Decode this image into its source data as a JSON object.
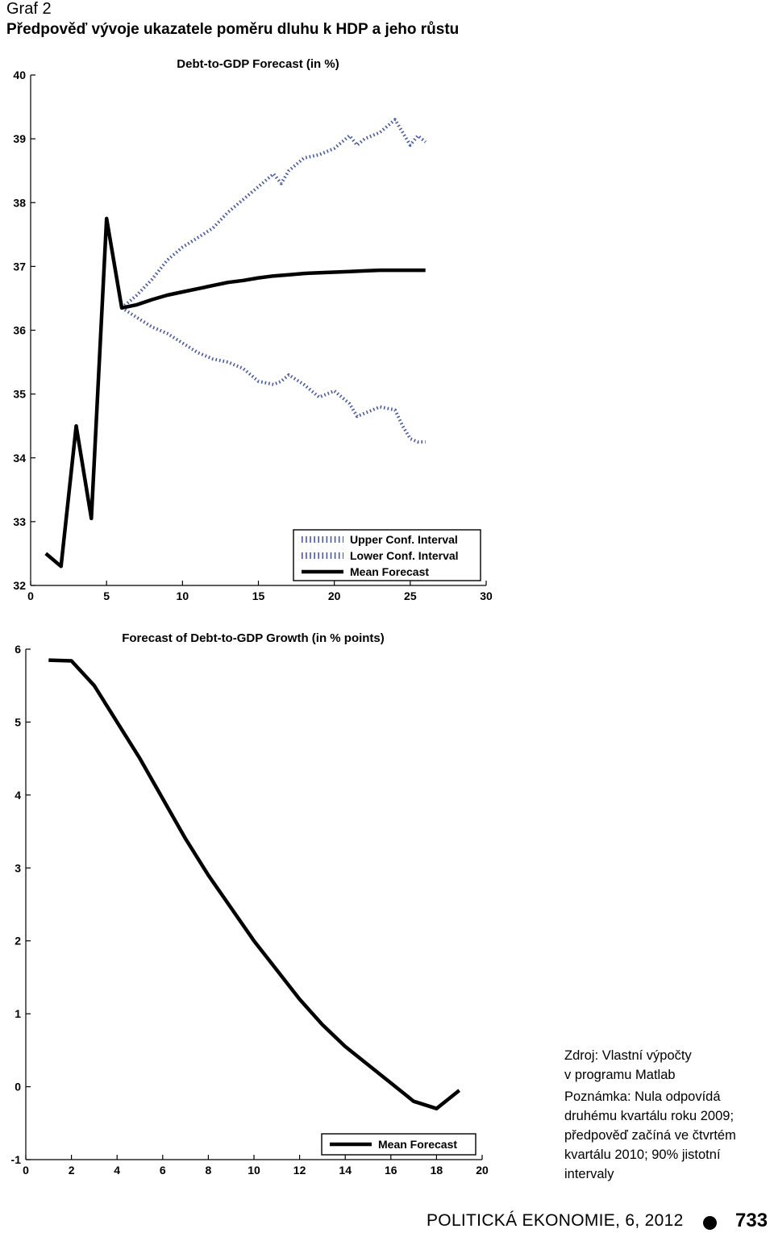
{
  "header": {
    "graf_label": "Graf 2",
    "title": "Předpověď vývoje ukazatele poměru dluhu k HDP a jeho růstu"
  },
  "chart_data": [
    {
      "type": "line",
      "title": "Debt-to-GDP Forecast (in %)",
      "xlabel": "",
      "ylabel": "",
      "xlim": [
        0,
        30
      ],
      "ylim": [
        32,
        40
      ],
      "x_ticks": [
        0,
        5,
        10,
        15,
        20,
        25,
        30
      ],
      "y_ticks": [
        32,
        33,
        34,
        35,
        36,
        37,
        38,
        39,
        40
      ],
      "grid": false,
      "legend_position": "bottom-right",
      "series": [
        {
          "name": "Upper Conf. Interval",
          "style": "dotted",
          "color": "#4a5a9a",
          "x": [
            6,
            7,
            8,
            9,
            10,
            11,
            12,
            13,
            14,
            15,
            16,
            16.5,
            17,
            18,
            19,
            20,
            21,
            21.5,
            22,
            23,
            24,
            24.5,
            25,
            25.5,
            26
          ],
          "y": [
            36.35,
            36.55,
            36.8,
            37.1,
            37.3,
            37.45,
            37.6,
            37.85,
            38.05,
            38.25,
            38.45,
            38.3,
            38.5,
            38.7,
            38.75,
            38.85,
            39.05,
            38.9,
            39.0,
            39.1,
            39.3,
            39.1,
            38.9,
            39.05,
            38.95
          ]
        },
        {
          "name": "Lower Conf. Interval",
          "style": "dotted",
          "color": "#4a5a9a",
          "x": [
            6,
            7,
            8,
            9,
            10,
            11,
            12,
            13,
            14,
            15,
            16,
            16.5,
            17,
            18,
            19,
            20,
            21,
            21.5,
            22,
            23,
            24,
            24.5,
            25,
            25.5,
            26
          ],
          "y": [
            36.35,
            36.2,
            36.05,
            35.95,
            35.8,
            35.65,
            35.55,
            35.5,
            35.4,
            35.2,
            35.15,
            35.2,
            35.3,
            35.15,
            34.95,
            35.05,
            34.85,
            34.65,
            34.7,
            34.8,
            34.75,
            34.5,
            34.3,
            34.25,
            34.25
          ]
        },
        {
          "name": "Mean Forecast",
          "style": "solid",
          "color": "#000000",
          "x": [
            1,
            2,
            3,
            4,
            5,
            6,
            7,
            8,
            9,
            10,
            11,
            12,
            13,
            14,
            15,
            16,
            17,
            18,
            19,
            20,
            21,
            22,
            23,
            24,
            25,
            26
          ],
          "y": [
            32.5,
            32.3,
            34.5,
            33.05,
            37.75,
            36.35,
            36.4,
            36.48,
            36.55,
            36.6,
            36.65,
            36.7,
            36.75,
            36.78,
            36.82,
            36.85,
            36.87,
            36.89,
            36.9,
            36.91,
            36.92,
            36.93,
            36.94,
            36.94,
            36.94,
            36.94
          ]
        }
      ]
    },
    {
      "type": "line",
      "title": "Forecast of Debt-to-GDP Growth (in % points)",
      "xlabel": "",
      "ylabel": "",
      "xlim": [
        0,
        20
      ],
      "ylim": [
        -1,
        6
      ],
      "x_ticks": [
        0,
        2,
        4,
        6,
        8,
        10,
        12,
        14,
        16,
        18,
        20
      ],
      "y_ticks": [
        -1,
        0,
        1,
        2,
        3,
        4,
        5,
        6
      ],
      "grid": false,
      "legend_position": "bottom-right",
      "series": [
        {
          "name": "Mean Forecast",
          "style": "solid",
          "color": "#000000",
          "x": [
            1,
            2,
            3,
            4,
            5,
            6,
            7,
            8,
            9,
            10,
            11,
            12,
            13,
            14,
            15,
            16,
            17,
            18,
            19
          ],
          "y": [
            5.85,
            5.84,
            5.5,
            5.0,
            4.5,
            3.95,
            3.4,
            2.9,
            2.45,
            2.0,
            1.6,
            1.2,
            0.85,
            0.55,
            0.3,
            0.05,
            -0.2,
            -0.3,
            -0.05
          ]
        }
      ]
    }
  ],
  "notes": {
    "source_line1": "Zdroj: Vlastní výpočty",
    "source_line2": "v programu Matlab",
    "note_line1": "Poznámka: Nula odpovídá",
    "note_line2": "druhému kvartálu roku 2009;",
    "note_line3": "předpověď začíná ve čtvrtém",
    "note_line4": "kvartálu 2010; 90% jistotní",
    "note_line5": "intervaly"
  },
  "footer": {
    "journal": "POLITICKÁ EKONOMIE, 6, 2012",
    "page_number": "733"
  }
}
